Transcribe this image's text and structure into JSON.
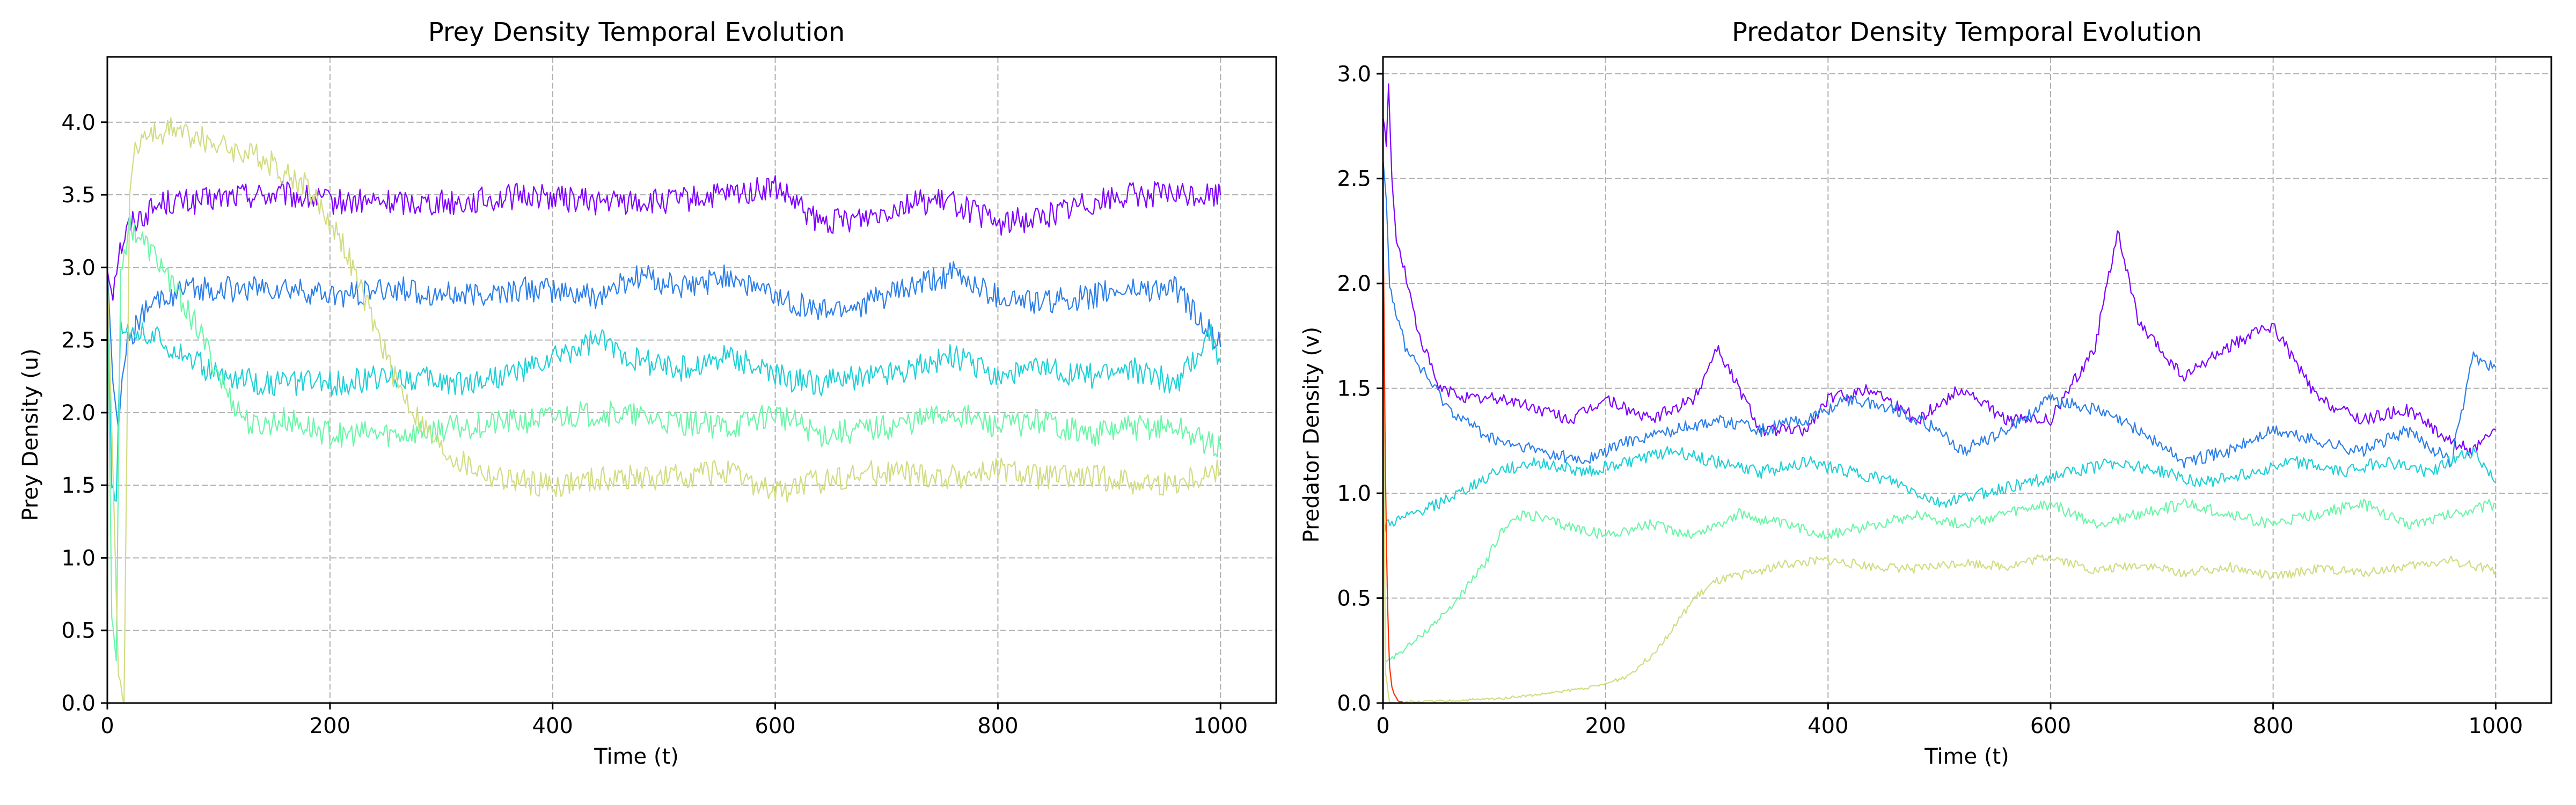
{
  "chart_data": [
    {
      "type": "line",
      "title": "Prey Density Temporal Evolution",
      "xlabel": "Time (t)",
      "ylabel": "Prey Density (u)",
      "xlim": [
        0,
        1050
      ],
      "ylim": [
        0,
        4.45
      ],
      "xticks": [
        0,
        200,
        400,
        600,
        800,
        1000
      ],
      "xtick_labels": [
        "0",
        "200",
        "400",
        "600",
        "800",
        "1000"
      ],
      "yticks": [
        0,
        0.5,
        1,
        1.5,
        2,
        2.5,
        3,
        3.5,
        4
      ],
      "ytick_labels": [
        "0.0",
        "0.5",
        "1.0",
        "1.5",
        "2.0",
        "2.5",
        "3.0",
        "3.5",
        "4.0"
      ],
      "grid": true,
      "series": [
        {
          "color": "#7f00ff",
          "x": [
            0,
            5,
            10,
            20,
            30,
            50,
            80,
            120,
            160,
            200,
            260,
            320,
            380,
            440,
            500,
            560,
            600,
            640,
            680,
            720,
            760,
            800,
            840,
            880,
            920,
            960,
            1000
          ],
          "y": [
            3.0,
            2.85,
            3.1,
            3.3,
            3.35,
            3.45,
            3.45,
            3.5,
            3.5,
            3.45,
            3.45,
            3.45,
            3.5,
            3.45,
            3.45,
            3.5,
            3.55,
            3.3,
            3.35,
            3.45,
            3.45,
            3.3,
            3.35,
            3.45,
            3.5,
            3.5,
            3.5
          ]
        },
        {
          "color": "#2e7fe8",
          "x": [
            0,
            5,
            10,
            15,
            20,
            30,
            50,
            80,
            120,
            160,
            200,
            260,
            320,
            380,
            440,
            480,
            520,
            560,
            600,
            640,
            680,
            720,
            760,
            800,
            840,
            880,
            920,
            960,
            1000
          ],
          "y": [
            3.0,
            2.2,
            1.9,
            2.4,
            2.5,
            2.65,
            2.8,
            2.85,
            2.85,
            2.85,
            2.8,
            2.85,
            2.8,
            2.85,
            2.8,
            2.95,
            2.85,
            2.95,
            2.8,
            2.7,
            2.75,
            2.85,
            2.95,
            2.8,
            2.75,
            2.8,
            2.85,
            2.85,
            2.45
          ]
        },
        {
          "color": "#1fd0d6",
          "x": [
            0,
            4,
            8,
            12,
            20,
            30,
            60,
            100,
            150,
            200,
            260,
            320,
            380,
            440,
            480,
            520,
            560,
            600,
            640,
            680,
            720,
            760,
            800,
            840,
            880,
            920,
            960,
            990,
            1000
          ],
          "y": [
            3.0,
            1.5,
            1.4,
            2.6,
            2.6,
            2.55,
            2.45,
            2.25,
            2.2,
            2.2,
            2.25,
            2.2,
            2.3,
            2.5,
            2.35,
            2.3,
            2.4,
            2.25,
            2.2,
            2.25,
            2.3,
            2.4,
            2.25,
            2.3,
            2.25,
            2.3,
            2.2,
            2.55,
            2.35
          ]
        },
        {
          "color": "#6cf6a8",
          "x": [
            0,
            4,
            8,
            12,
            20,
            30,
            50,
            80,
            110,
            130,
            160,
            200,
            260,
            320,
            380,
            440,
            500,
            560,
            600,
            640,
            700,
            760,
            800,
            840,
            880,
            920,
            960,
            1000
          ],
          "y": [
            3.0,
            0.6,
            0.3,
            3.0,
            3.3,
            3.2,
            3.0,
            2.6,
            2.1,
            1.9,
            1.95,
            1.85,
            1.85,
            1.9,
            1.95,
            2.0,
            1.95,
            1.9,
            2.0,
            1.85,
            1.9,
            2.0,
            1.9,
            1.95,
            1.85,
            1.9,
            1.9,
            1.75
          ]
        },
        {
          "color": "#d2dc82",
          "x": [
            0,
            10,
            15,
            20,
            25,
            35,
            60,
            100,
            140,
            180,
            210,
            240,
            260,
            280,
            300,
            320,
            350,
            400,
            450,
            500,
            550,
            600,
            650,
            700,
            750,
            800,
            850,
            900,
            950,
            1000
          ],
          "y": [
            3.0,
            0.2,
            0.0,
            3.5,
            3.85,
            3.9,
            3.95,
            3.85,
            3.75,
            3.55,
            3.2,
            2.6,
            2.2,
            1.95,
            1.75,
            1.65,
            1.55,
            1.5,
            1.55,
            1.55,
            1.6,
            1.45,
            1.55,
            1.6,
            1.55,
            1.6,
            1.55,
            1.55,
            1.5,
            1.6
          ]
        }
      ]
    },
    {
      "type": "line",
      "title": "Predator Density Temporal Evolution",
      "xlabel": "Time (t)",
      "ylabel": "Predator Density (v)",
      "xlim": [
        0,
        1050
      ],
      "ylim": [
        0,
        3.08
      ],
      "xticks": [
        0,
        200,
        400,
        600,
        800,
        1000
      ],
      "xtick_labels": [
        "0",
        "200",
        "400",
        "600",
        "800",
        "1000"
      ],
      "yticks": [
        0,
        0.5,
        1,
        1.5,
        2,
        2.5,
        3
      ],
      "ytick_labels": [
        "0.0",
        "0.5",
        "1.0",
        "1.5",
        "2.0",
        "2.5",
        "3.0"
      ],
      "grid": true,
      "series": [
        {
          "color": "#7f00ff",
          "x": [
            0,
            3,
            5,
            8,
            12,
            18,
            30,
            50,
            80,
            110,
            140,
            170,
            200,
            240,
            280,
            300,
            340,
            380,
            400,
            440,
            480,
            520,
            560,
            600,
            640,
            660,
            680,
            720,
            760,
            800,
            840,
            880,
            920,
            960,
            980,
            1000
          ],
          "y": [
            2.8,
            2.65,
            2.95,
            2.5,
            2.2,
            2.1,
            1.8,
            1.5,
            1.45,
            1.45,
            1.4,
            1.35,
            1.45,
            1.35,
            1.45,
            1.7,
            1.3,
            1.3,
            1.45,
            1.5,
            1.35,
            1.5,
            1.35,
            1.35,
            1.7,
            2.25,
            1.8,
            1.55,
            1.7,
            1.8,
            1.45,
            1.35,
            1.4,
            1.25,
            1.2,
            1.3
          ]
        },
        {
          "color": "#2e7fe8",
          "x": [
            0,
            3,
            6,
            10,
            20,
            40,
            60,
            100,
            140,
            180,
            220,
            260,
            300,
            340,
            380,
            420,
            460,
            500,
            520,
            560,
            600,
            640,
            680,
            720,
            760,
            800,
            840,
            880,
            920,
            960,
            980,
            1000
          ],
          "y": [
            2.6,
            2.4,
            2.0,
            1.9,
            1.7,
            1.55,
            1.4,
            1.25,
            1.2,
            1.15,
            1.25,
            1.3,
            1.35,
            1.3,
            1.35,
            1.45,
            1.4,
            1.3,
            1.2,
            1.3,
            1.45,
            1.4,
            1.3,
            1.15,
            1.2,
            1.3,
            1.25,
            1.2,
            1.3,
            1.15,
            1.65,
            1.6
          ]
        },
        {
          "color": "#1fd0d6",
          "x": [
            0,
            3,
            8,
            20,
            40,
            70,
            100,
            140,
            180,
            220,
            260,
            300,
            340,
            380,
            420,
            460,
            500,
            540,
            580,
            620,
            660,
            700,
            740,
            780,
            820,
            860,
            900,
            940,
            980,
            1000
          ],
          "y": [
            0.8,
            0.85,
            0.86,
            0.88,
            0.93,
            1.0,
            1.1,
            1.15,
            1.1,
            1.15,
            1.2,
            1.15,
            1.1,
            1.15,
            1.1,
            1.05,
            0.95,
            1.0,
            1.05,
            1.1,
            1.15,
            1.1,
            1.05,
            1.1,
            1.15,
            1.1,
            1.15,
            1.1,
            1.2,
            1.05
          ]
        },
        {
          "color": "#6cf6a8",
          "x": [
            0,
            2,
            10,
            30,
            60,
            90,
            110,
            130,
            160,
            200,
            240,
            280,
            320,
            360,
            400,
            440,
            480,
            520,
            560,
            600,
            640,
            680,
            720,
            760,
            800,
            840,
            880,
            920,
            960,
            1000
          ],
          "y": [
            2.6,
            0.2,
            0.22,
            0.3,
            0.45,
            0.65,
            0.85,
            0.9,
            0.85,
            0.8,
            0.85,
            0.8,
            0.9,
            0.85,
            0.8,
            0.85,
            0.9,
            0.85,
            0.9,
            0.95,
            0.85,
            0.9,
            0.95,
            0.9,
            0.85,
            0.9,
            0.95,
            0.85,
            0.9,
            0.95
          ]
        },
        {
          "color": "#d2dc82",
          "x": [
            0,
            2,
            6,
            20,
            60,
            100,
            140,
            180,
            200,
            220,
            240,
            260,
            280,
            300,
            330,
            360,
            400,
            440,
            480,
            520,
            560,
            600,
            640,
            680,
            720,
            760,
            800,
            840,
            880,
            920,
            960,
            1000
          ],
          "y": [
            2.5,
            0.15,
            0.0,
            0.005,
            0.01,
            0.02,
            0.04,
            0.07,
            0.09,
            0.13,
            0.22,
            0.35,
            0.5,
            0.58,
            0.62,
            0.66,
            0.68,
            0.65,
            0.64,
            0.67,
            0.65,
            0.7,
            0.63,
            0.66,
            0.62,
            0.65,
            0.6,
            0.64,
            0.62,
            0.65,
            0.68,
            0.63
          ]
        },
        {
          "color": "#ff2f00",
          "x": [
            0,
            1,
            2,
            3,
            4,
            5,
            6,
            8,
            10,
            12,
            15,
            20
          ],
          "y": [
            2.4,
            1.8,
            1.2,
            0.8,
            0.5,
            0.3,
            0.18,
            0.08,
            0.04,
            0.02,
            0.005,
            0.0
          ]
        }
      ]
    }
  ]
}
